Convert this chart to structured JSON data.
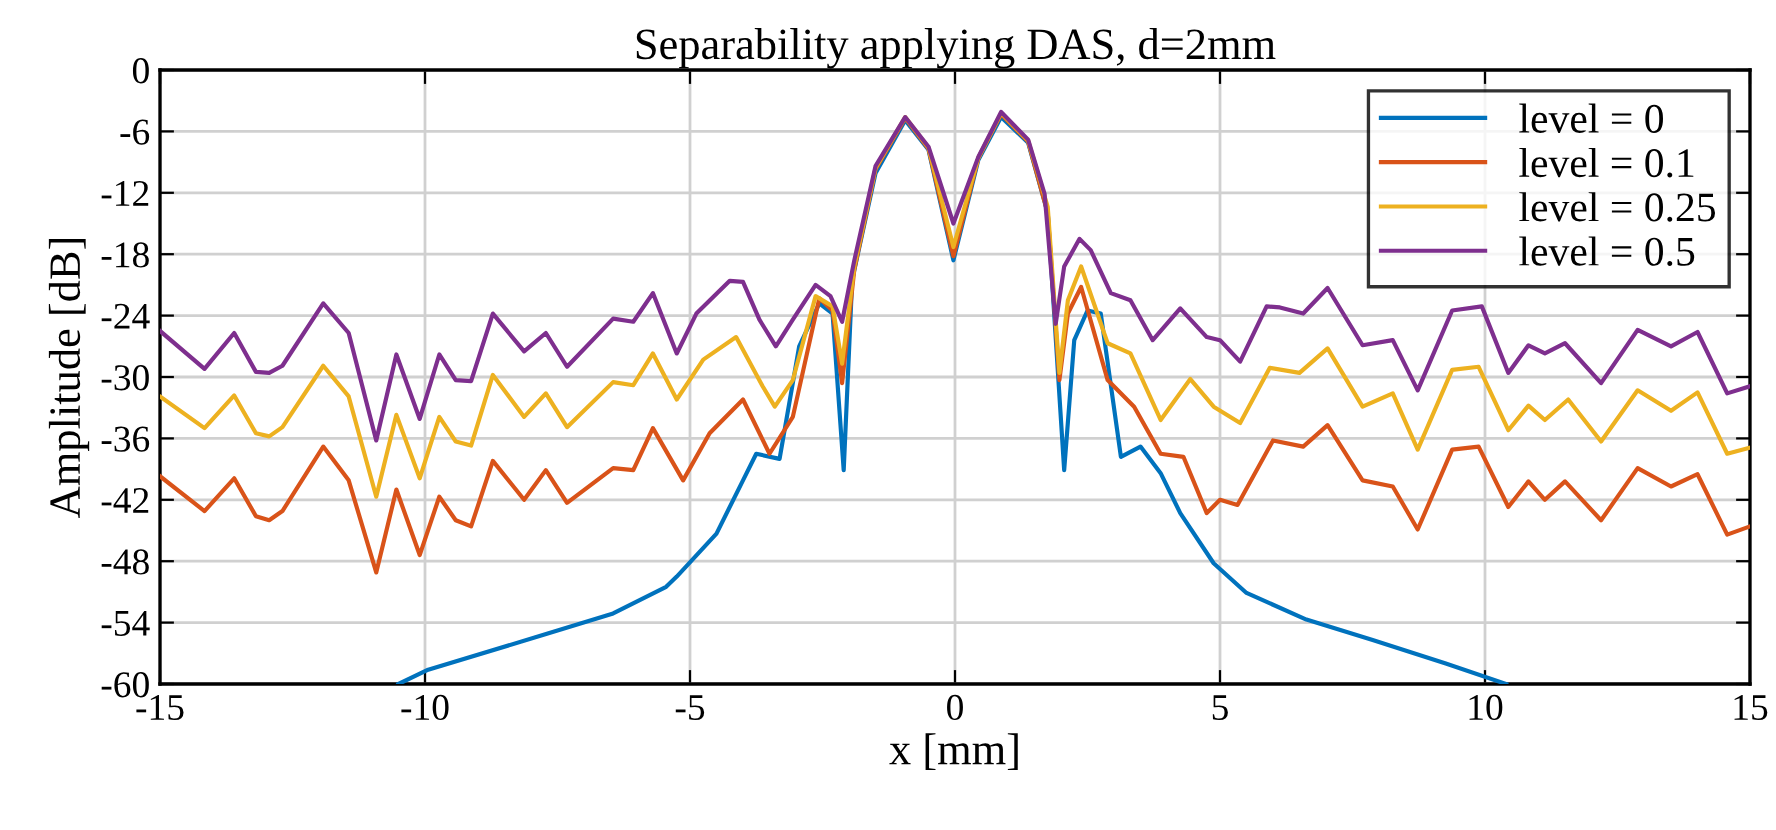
{
  "chart_data": {
    "type": "line",
    "title": "Separability applying DAS, d=2mm",
    "xlabel": "x [mm]",
    "ylabel": "Amplitude [dB]",
    "xlim": [
      -15,
      15
    ],
    "xticks": [
      -15,
      -10,
      -5,
      0,
      5,
      10,
      15
    ],
    "ylim": [
      -60,
      0
    ],
    "yticks": [
      -60,
      -54,
      -48,
      -42,
      -36,
      -30,
      -24,
      -18,
      -12,
      -6,
      0
    ],
    "grid": true,
    "legend": "top right",
    "line_style": "solid",
    "marker": "none",
    "series": [
      {
        "name": "level = 0",
        "color": "#0072bd",
        "x": [
          -10.5,
          -9.94,
          -7.7,
          -6.45,
          -5.45,
          -5.25,
          -4.5,
          -4.0,
          -3.75,
          -3.31,
          -2.94,
          -2.56,
          -2.31,
          -2.1,
          -1.94,
          -1.5,
          -0.94,
          -0.5,
          -0.03,
          0.44,
          0.87,
          1.38,
          1.75,
          2.06,
          2.25,
          2.5,
          2.75,
          3.13,
          3.5,
          3.88,
          4.25,
          4.88,
          5.5,
          6.63,
          7.88,
          9.26,
          10.4
        ],
        "values": [
          -60,
          -58.6,
          -55.1,
          -53.1,
          -50.5,
          -49.5,
          -45.3,
          -40.1,
          -37.5,
          -38.0,
          -27.0,
          -22.8,
          -23.8,
          -39.1,
          -20.5,
          -10.1,
          -4.9,
          -7.8,
          -18.6,
          -8.8,
          -4.6,
          -7.1,
          -14.0,
          -39.1,
          -26.4,
          -23.5,
          -23.8,
          -37.8,
          -36.8,
          -39.4,
          -43.3,
          -48.2,
          -51.1,
          -53.7,
          -55.7,
          -58.0,
          -60
        ]
      },
      {
        "name": "level = 0.1",
        "color": "#d95319",
        "x": [
          -15,
          -14.16,
          -13.6,
          -13.19,
          -12.94,
          -12.69,
          -11.92,
          -11.44,
          -10.92,
          -10.54,
          -10.1,
          -9.73,
          -9.42,
          -9.13,
          -8.72,
          -8.13,
          -7.72,
          -7.32,
          -6.45,
          -6.07,
          -5.7,
          -5.13,
          -4.63,
          -4.0,
          -3.5,
          -3.06,
          -2.56,
          -2.31,
          -2.13,
          -1.9,
          -1.5,
          -0.94,
          -0.5,
          -0.03,
          0.44,
          0.87,
          1.38,
          1.75,
          1.97,
          2.13,
          2.38,
          2.88,
          3.38,
          3.88,
          4.31,
          4.75,
          5.0,
          5.33,
          6.0,
          6.57,
          7.03,
          7.69,
          8.26,
          8.73,
          9.38,
          9.88,
          10.44,
          10.82,
          11.13,
          11.51,
          12.19,
          12.88,
          13.51,
          14.01,
          14.57,
          15
        ],
        "values": [
          -39.7,
          -43.1,
          -39.9,
          -43.6,
          -44.0,
          -43.1,
          -36.8,
          -40.1,
          -49.1,
          -41.0,
          -47.4,
          -41.7,
          -44.0,
          -44.6,
          -38.2,
          -42.0,
          -39.1,
          -42.3,
          -38.9,
          -39.1,
          -35.0,
          -40.1,
          -35.5,
          -32.2,
          -37.5,
          -33.9,
          -22.3,
          -23.5,
          -30.6,
          -19.5,
          -9.7,
          -4.7,
          -7.7,
          -18.2,
          -8.6,
          -4.3,
          -7.0,
          -14.0,
          -30.3,
          -23.8,
          -21.2,
          -30.3,
          -32.9,
          -37.5,
          -37.8,
          -43.3,
          -42.0,
          -42.5,
          -36.2,
          -36.8,
          -34.7,
          -40.1,
          -40.7,
          -44.9,
          -37.1,
          -36.8,
          -42.7,
          -40.2,
          -42.0,
          -40.2,
          -44.0,
          -38.9,
          -40.7,
          -39.5,
          -45.4,
          -44.6
        ]
      },
      {
        "name": "level = 0.25",
        "color": "#edb120",
        "x": [
          -15,
          -14.16,
          -13.6,
          -13.19,
          -12.94,
          -12.69,
          -11.92,
          -11.44,
          -10.92,
          -10.54,
          -10.1,
          -9.73,
          -9.42,
          -9.13,
          -8.72,
          -8.13,
          -7.72,
          -7.32,
          -6.45,
          -6.07,
          -5.7,
          -5.25,
          -4.75,
          -4.13,
          -3.63,
          -3.4,
          -3.06,
          -2.63,
          -2.31,
          -2.13,
          -1.9,
          -1.5,
          -0.94,
          -0.5,
          -0.03,
          0.44,
          0.87,
          1.38,
          1.75,
          1.97,
          2.13,
          2.38,
          2.88,
          3.31,
          3.88,
          4.44,
          4.88,
          5.38,
          5.94,
          6.5,
          7.03,
          7.69,
          8.26,
          8.73,
          9.38,
          9.88,
          10.44,
          10.82,
          11.13,
          11.57,
          12.19,
          12.88,
          13.51,
          14.01,
          14.57,
          15
        ],
        "values": [
          -31.9,
          -35.0,
          -31.8,
          -35.5,
          -35.8,
          -34.9,
          -28.9,
          -31.9,
          -41.7,
          -33.7,
          -39.9,
          -33.9,
          -36.3,
          -36.7,
          -29.8,
          -33.9,
          -31.6,
          -34.9,
          -30.5,
          -30.8,
          -27.7,
          -32.2,
          -28.3,
          -26.1,
          -30.9,
          -32.9,
          -30.3,
          -22.1,
          -23.1,
          -28.7,
          -19.2,
          -9.6,
          -4.6,
          -7.6,
          -17.3,
          -8.6,
          -4.2,
          -6.9,
          -13.4,
          -29.6,
          -22.5,
          -19.2,
          -26.7,
          -27.7,
          -34.2,
          -30.2,
          -32.9,
          -34.5,
          -29.1,
          -29.6,
          -27.2,
          -32.9,
          -31.6,
          -37.1,
          -29.3,
          -29.0,
          -35.2,
          -32.8,
          -34.2,
          -32.2,
          -36.3,
          -31.3,
          -33.3,
          -31.5,
          -37.5,
          -36.9
        ]
      },
      {
        "name": "level = 0.5",
        "color": "#7e2f8e",
        "x": [
          -15,
          -14.16,
          -13.6,
          -13.19,
          -12.94,
          -12.69,
          -11.92,
          -11.44,
          -10.92,
          -10.54,
          -10.1,
          -9.73,
          -9.42,
          -9.13,
          -8.72,
          -8.13,
          -7.72,
          -7.32,
          -6.45,
          -6.07,
          -5.7,
          -5.25,
          -4.88,
          -4.25,
          -4.0,
          -3.69,
          -3.38,
          -3.06,
          -2.63,
          -2.35,
          -2.13,
          -1.9,
          -1.5,
          -0.94,
          -0.5,
          -0.03,
          0.44,
          0.87,
          1.38,
          1.69,
          1.9,
          2.06,
          2.35,
          2.56,
          2.94,
          3.31,
          3.73,
          4.25,
          4.75,
          5.0,
          5.38,
          5.88,
          6.13,
          6.57,
          7.03,
          7.69,
          8.26,
          8.73,
          9.38,
          9.94,
          10.44,
          10.82,
          11.13,
          11.51,
          12.19,
          12.88,
          13.51,
          14.01,
          14.57,
          15
        ],
        "values": [
          -25.5,
          -29.2,
          -25.7,
          -29.5,
          -29.6,
          -28.9,
          -22.8,
          -25.7,
          -36.2,
          -27.8,
          -34.1,
          -27.8,
          -30.3,
          -30.4,
          -23.8,
          -27.5,
          -25.7,
          -29.0,
          -24.3,
          -24.6,
          -21.8,
          -27.7,
          -23.8,
          -20.6,
          -20.7,
          -24.4,
          -27.0,
          -24.4,
          -21.0,
          -22.1,
          -24.6,
          -18.6,
          -9.4,
          -4.6,
          -7.5,
          -15.0,
          -8.5,
          -4.1,
          -6.8,
          -12.1,
          -24.8,
          -19.2,
          -16.5,
          -17.6,
          -21.8,
          -22.5,
          -26.4,
          -23.3,
          -26.1,
          -26.4,
          -28.5,
          -23.1,
          -23.2,
          -23.8,
          -21.3,
          -26.9,
          -26.4,
          -31.3,
          -23.5,
          -23.1,
          -29.6,
          -26.9,
          -27.7,
          -26.7,
          -30.6,
          -25.4,
          -27.0,
          -25.6,
          -31.6,
          -30.9
        ]
      }
    ]
  }
}
